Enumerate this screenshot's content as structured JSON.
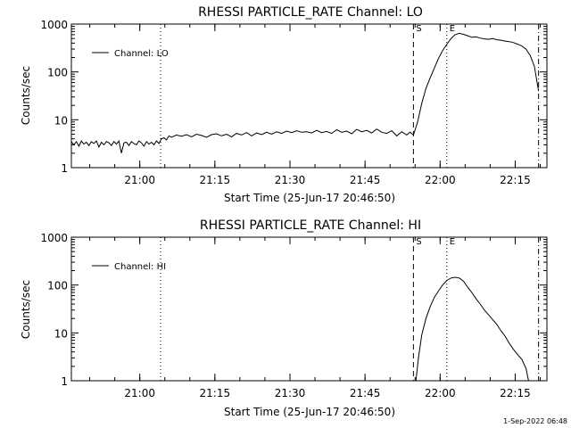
{
  "footer": {
    "date": "1-Sep-2022 06:48"
  },
  "chart_data": [
    {
      "type": "line",
      "title": "RHESSI PARTICLE_RATE Channel: LO",
      "xlabel": "Start Time (25-Jun-17 20:46:50)",
      "ylabel": "Counts/sec",
      "yscale": "log",
      "xlim": [
        0,
        5700
      ],
      "ylim": [
        1,
        1000
      ],
      "x_ticks": [
        {
          "t": 820,
          "label": "21:00"
        },
        {
          "t": 1720,
          "label": "21:15"
        },
        {
          "t": 2620,
          "label": "21:30"
        },
        {
          "t": 3520,
          "label": "21:45"
        },
        {
          "t": 4420,
          "label": "22:00"
        },
        {
          "t": 5320,
          "label": "22:15"
        }
      ],
      "y_ticks": [
        {
          "v": 1,
          "label": "1"
        },
        {
          "v": 10,
          "label": "10"
        },
        {
          "v": 100,
          "label": "100"
        },
        {
          "v": 1000,
          "label": "1000"
        }
      ],
      "legend": {
        "position": "top-left",
        "entries": [
          "Channel: LO"
        ]
      },
      "markers": [
        {
          "t": 1070,
          "style": "dotted",
          "label": ""
        },
        {
          "t": 4100,
          "style": "dashed",
          "label": "S"
        },
        {
          "t": 4500,
          "style": "dotted",
          "label": "E"
        },
        {
          "t": 5600,
          "style": "dashdot",
          "label": ""
        }
      ],
      "series": [
        {
          "name": "Channel: LO",
          "x": [
            0,
            30,
            60,
            90,
            120,
            150,
            180,
            210,
            240,
            270,
            300,
            330,
            360,
            390,
            420,
            450,
            480,
            510,
            540,
            570,
            600,
            630,
            660,
            690,
            720,
            750,
            780,
            810,
            840,
            870,
            900,
            930,
            960,
            990,
            1020,
            1050,
            1080,
            1110,
            1140,
            1170,
            1200,
            1260,
            1320,
            1380,
            1440,
            1500,
            1560,
            1620,
            1680,
            1740,
            1800,
            1860,
            1920,
            1980,
            2040,
            2100,
            2160,
            2220,
            2280,
            2340,
            2400,
            2460,
            2520,
            2580,
            2640,
            2700,
            2760,
            2820,
            2880,
            2940,
            3000,
            3060,
            3120,
            3180,
            3240,
            3300,
            3360,
            3420,
            3480,
            3540,
            3600,
            3660,
            3720,
            3780,
            3840,
            3900,
            3960,
            4020,
            4060,
            4100,
            4150,
            4200,
            4250,
            4300,
            4350,
            4400,
            4450,
            4500,
            4550,
            4600,
            4650,
            4700,
            4750,
            4800,
            4850,
            4900,
            4950,
            5000,
            5050,
            5100,
            5150,
            5200,
            5250,
            5300,
            5350,
            5400,
            5450,
            5500,
            5550,
            5600
          ],
          "y": [
            3.5,
            3.0,
            3.5,
            2.8,
            3.6,
            3.1,
            3.4,
            2.9,
            3.5,
            3.2,
            3.6,
            2.7,
            3.4,
            3.0,
            3.5,
            3.3,
            2.9,
            3.5,
            3.1,
            3.6,
            2.0,
            3.3,
            3.4,
            2.9,
            3.5,
            3.2,
            3.0,
            3.6,
            3.3,
            2.8,
            3.5,
            3.1,
            3.4,
            3.0,
            3.6,
            3.2,
            4.0,
            4.2,
            3.8,
            4.6,
            4.3,
            4.8,
            4.5,
            4.9,
            4.4,
            5.0,
            4.7,
            4.3,
            4.9,
            5.1,
            4.6,
            5.0,
            4.4,
            5.2,
            4.8,
            5.4,
            4.6,
            5.3,
            4.9,
            5.5,
            5.0,
            5.6,
            5.2,
            5.8,
            5.4,
            5.9,
            5.5,
            5.6,
            5.3,
            6.0,
            5.4,
            5.7,
            5.2,
            6.2,
            5.5,
            5.8,
            5.1,
            6.3,
            5.6,
            6.0,
            5.3,
            6.4,
            5.5,
            5.2,
            5.9,
            4.6,
            5.6,
            4.8,
            5.5,
            4.8,
            9,
            22,
            45,
            75,
            120,
            190,
            280,
            380,
            500,
            600,
            640,
            610,
            570,
            530,
            540,
            510,
            490,
            480,
            500,
            470,
            460,
            440,
            430,
            410,
            380,
            350,
            300,
            220,
            130,
            40
          ]
        }
      ]
    },
    {
      "type": "line",
      "title": "RHESSI PARTICLE_RATE Channel: HI",
      "xlabel": "Start Time (25-Jun-17 20:46:50)",
      "ylabel": "Counts/sec",
      "yscale": "log",
      "xlim": [
        0,
        5700
      ],
      "ylim": [
        1,
        1000
      ],
      "x_ticks": [
        {
          "t": 820,
          "label": "21:00"
        },
        {
          "t": 1720,
          "label": "21:15"
        },
        {
          "t": 2620,
          "label": "21:30"
        },
        {
          "t": 3520,
          "label": "21:45"
        },
        {
          "t": 4420,
          "label": "22:00"
        },
        {
          "t": 5320,
          "label": "22:15"
        }
      ],
      "y_ticks": [
        {
          "v": 1,
          "label": "1"
        },
        {
          "v": 10,
          "label": "10"
        },
        {
          "v": 100,
          "label": "100"
        },
        {
          "v": 1000,
          "label": "1000"
        }
      ],
      "legend": {
        "position": "top-left",
        "entries": [
          "Channel: HI"
        ]
      },
      "markers": [
        {
          "t": 1070,
          "style": "dotted",
          "label": ""
        },
        {
          "t": 4100,
          "style": "dashed",
          "label": "S"
        },
        {
          "t": 4500,
          "style": "dotted",
          "label": "E"
        },
        {
          "t": 5600,
          "style": "dashdot",
          "label": ""
        }
      ],
      "series": [
        {
          "name": "Channel: HI",
          "x": [
            4130,
            4160,
            4200,
            4250,
            4300,
            4350,
            4400,
            4450,
            4500,
            4550,
            4600,
            4650,
            4700,
            4750,
            4800,
            4850,
            4900,
            4950,
            5000,
            5050,
            5100,
            5150,
            5200,
            5250,
            5300,
            5350,
            5400,
            5450,
            5480
          ],
          "y": [
            1,
            3,
            9,
            20,
            35,
            55,
            75,
            100,
            125,
            140,
            145,
            140,
            120,
            90,
            70,
            52,
            40,
            30,
            24,
            19,
            15,
            11,
            8.5,
            6,
            4.5,
            3.5,
            2.8,
            1.8,
            1
          ]
        }
      ]
    }
  ]
}
